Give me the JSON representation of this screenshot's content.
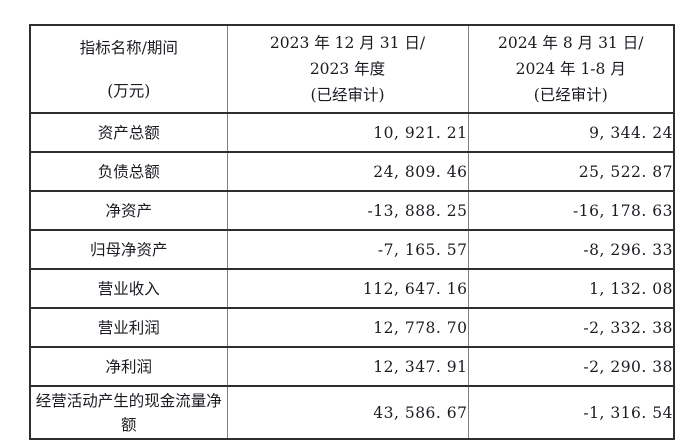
{
  "colors": {
    "background": "#ffffff",
    "text": "#1b1b22",
    "border_dark": "#2e2e2e",
    "border_light": "#7d7d7d"
  },
  "table": {
    "header": {
      "col1_line1": "指标名称/期间",
      "col1_line2": "(万元)",
      "col2_line1": "2023 年 12 月 31 日/",
      "col2_line2": "2023 年度",
      "col2_line3": "(已经审计)",
      "col3_line1": "2024 年 8 月 31 日/",
      "col3_line2": "2024 年 1-8 月",
      "col3_line3": "(已经审计)"
    },
    "rows": [
      {
        "label": "资产总额",
        "period_2023": "10, 921. 21",
        "period_2024": "9, 344. 24"
      },
      {
        "label": "负债总额",
        "period_2023": "24, 809. 46",
        "period_2024": "25, 522. 87"
      },
      {
        "label": "净资产",
        "period_2023": "-13, 888. 25",
        "period_2024": "-16, 178. 63"
      },
      {
        "label": "归母净资产",
        "period_2023": "-7, 165. 57",
        "period_2024": "-8, 296. 33"
      },
      {
        "label": "营业收入",
        "period_2023": "112, 647. 16",
        "period_2024": "1, 132. 08"
      },
      {
        "label": "营业利润",
        "period_2023": "12, 778. 70",
        "period_2024": "-2, 332. 38"
      },
      {
        "label": "净利润",
        "period_2023": "12, 347. 91",
        "period_2024": "-2, 290. 38"
      },
      {
        "label": "经营活动产生的现金流量净额",
        "period_2023": "43, 586. 67",
        "period_2024": "-1, 316. 54"
      }
    ]
  }
}
